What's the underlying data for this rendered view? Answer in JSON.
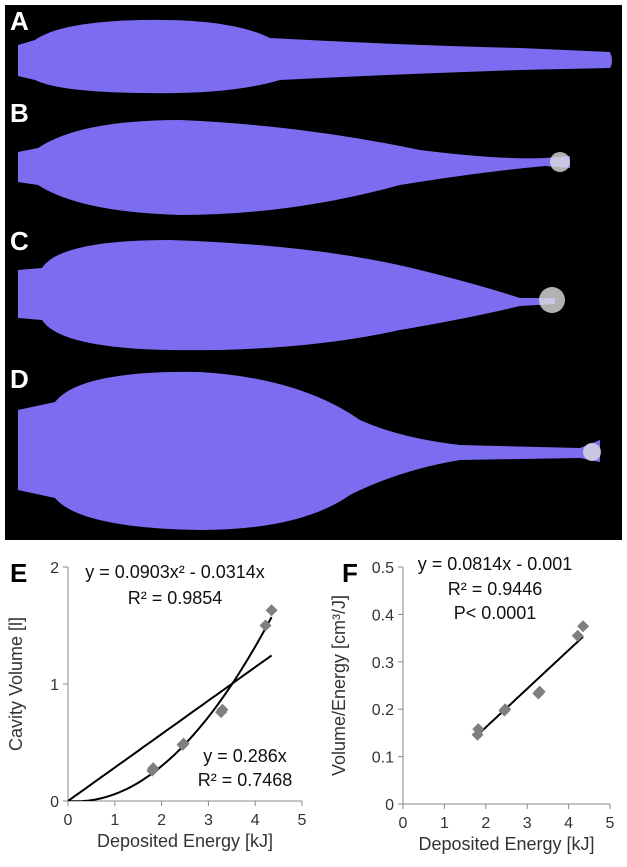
{
  "panels": [
    "A",
    "B",
    "C",
    "D"
  ],
  "chart_data": [
    {
      "type": "scatter",
      "panel_label": "E",
      "x_label": "Deposited Energy [kJ]",
      "y_label": "Cavity Volume [l]",
      "x": [
        1.8,
        1.82,
        2.45,
        2.47,
        3.27,
        3.3,
        4.22,
        4.35
      ],
      "values": [
        0.26,
        0.28,
        0.48,
        0.49,
        0.76,
        0.78,
        1.5,
        1.63
      ],
      "color": "#7f7f7f",
      "xlim": [
        0,
        5
      ],
      "xticks": [
        0,
        1,
        2,
        3,
        4,
        5
      ],
      "ylim": [
        0,
        2
      ],
      "yticks": [
        0,
        1,
        2
      ],
      "trendlines": [
        {
          "labels": [
            "y = 0.0903x² - 0.0314x",
            "R² = 0.9854"
          ],
          "coefficients": [
            0,
            -0.0314,
            0.0903
          ]
        },
        {
          "labels": [
            "y = 0.286x",
            "R² = 0.7468"
          ],
          "coefficients": [
            0,
            0.286
          ]
        }
      ]
    },
    {
      "type": "scatter",
      "panel_label": "F",
      "x_label": "Deposited Energy [kJ]",
      "y_label": "Volume/Energy [cm³/J]",
      "x": [
        1.8,
        1.82,
        2.45,
        2.47,
        3.27,
        3.3,
        4.22,
        4.35
      ],
      "values": [
        0.146,
        0.158,
        0.197,
        0.2,
        0.233,
        0.237,
        0.355,
        0.375
      ],
      "color": "#7f7f7f",
      "xlim": [
        0,
        5
      ],
      "xticks": [
        0,
        1,
        2,
        3,
        4,
        5
      ],
      "ylim": [
        0,
        0.5
      ],
      "yticks": [
        0,
        0.1,
        0.2,
        0.3,
        0.4,
        0.5
      ],
      "trendlines": [
        {
          "labels": [
            "y = 0.0814x - 0.001",
            "R² = 0.9446",
            "P< 0.0001"
          ],
          "coefficients": [
            -0.001,
            0.0814
          ]
        }
      ]
    }
  ]
}
